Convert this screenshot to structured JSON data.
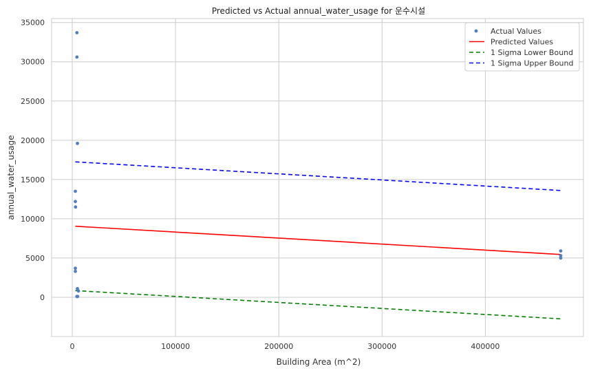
{
  "chart_data": {
    "type": "scatter",
    "title": "Predicted vs Actual annual_water_usage for 운수시설",
    "xlabel": "Building Area (m^2)",
    "ylabel": "annual_water_usage",
    "xlim": [
      -20000,
      495000
    ],
    "ylim": [
      -5000,
      35500
    ],
    "x_ticks": [
      0,
      100000,
      200000,
      300000,
      400000
    ],
    "y_ticks": [
      0,
      5000,
      10000,
      15000,
      20000,
      25000,
      30000,
      35000
    ],
    "x_tick_labels": [
      "0",
      "100000",
      "200000",
      "300000",
      "400000"
    ],
    "y_tick_labels": [
      "0",
      "5000",
      "10000",
      "15000",
      "20000",
      "25000",
      "30000",
      "35000"
    ],
    "grid": true,
    "legend_position": "top-right",
    "series": [
      {
        "name": "Actual Values",
        "kind": "points",
        "color": "#4c7fc4",
        "points": [
          {
            "x": 4500,
            "y": 33700
          },
          {
            "x": 4500,
            "y": 30600
          },
          {
            "x": 5000,
            "y": 19600
          },
          {
            "x": 3000,
            "y": 13500
          },
          {
            "x": 3000,
            "y": 12200
          },
          {
            "x": 3200,
            "y": 11500
          },
          {
            "x": 3000,
            "y": 3700
          },
          {
            "x": 3000,
            "y": 3300
          },
          {
            "x": 5000,
            "y": 1100
          },
          {
            "x": 6000,
            "y": 800
          },
          {
            "x": 4500,
            "y": 100
          },
          {
            "x": 5200,
            "y": 100
          },
          {
            "x": 473000,
            "y": 5900
          },
          {
            "x": 473000,
            "y": 5300
          },
          {
            "x": 473000,
            "y": 5000
          }
        ]
      },
      {
        "name": "Predicted Values",
        "kind": "line",
        "color": "#ff0000",
        "dash": "",
        "points": [
          {
            "x": 3000,
            "y": 9050
          },
          {
            "x": 473000,
            "y": 5450
          }
        ]
      },
      {
        "name": "1 Sigma Lower Bound",
        "kind": "line",
        "color": "#008000",
        "dash": "6,4",
        "points": [
          {
            "x": 3000,
            "y": 850
          },
          {
            "x": 473000,
            "y": -2750
          }
        ]
      },
      {
        "name": "1 Sigma Upper Bound",
        "kind": "line",
        "color": "#0000ff",
        "dash": "6,4",
        "points": [
          {
            "x": 3000,
            "y": 17250
          },
          {
            "x": 473000,
            "y": 13600
          }
        ]
      }
    ]
  }
}
